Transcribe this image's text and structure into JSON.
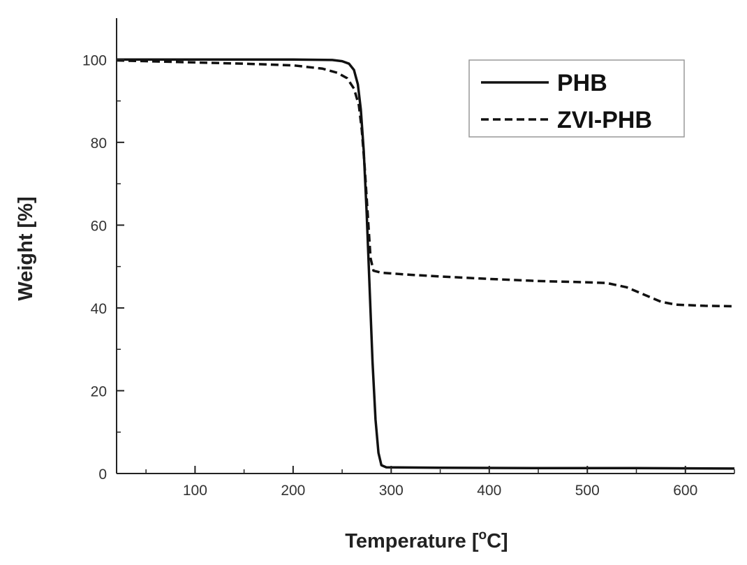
{
  "colors": {
    "line": "#111111",
    "axis": "#222222",
    "legend_border": "#999999",
    "background": "#ffffff"
  },
  "chart_data": {
    "type": "line",
    "title": "",
    "xlabel_main": "Temperature [",
    "xlabel_sup": "o",
    "xlabel_tail": "C]",
    "ylabel": "Weight [%]",
    "xlim": [
      20,
      650
    ],
    "ylim": [
      0,
      110
    ],
    "x_ticks": [
      100,
      200,
      300,
      400,
      500,
      600
    ],
    "x_minor_ticks": [
      50,
      150,
      250,
      350,
      450,
      550,
      650
    ],
    "y_ticks": [
      0,
      20,
      40,
      60,
      80,
      100
    ],
    "grid": false,
    "legend_position": "top-right",
    "series": [
      {
        "name": "PHB",
        "style": "solid",
        "points": [
          [
            20,
            100
          ],
          [
            100,
            100
          ],
          [
            200,
            100
          ],
          [
            240,
            99.9
          ],
          [
            250,
            99.6
          ],
          [
            257,
            99
          ],
          [
            262,
            97.5
          ],
          [
            266,
            94
          ],
          [
            269,
            88
          ],
          [
            272,
            78
          ],
          [
            275,
            63
          ],
          [
            278,
            45
          ],
          [
            281,
            27
          ],
          [
            284,
            13
          ],
          [
            287,
            5
          ],
          [
            290,
            2
          ],
          [
            295,
            1.5
          ],
          [
            350,
            1.4
          ],
          [
            450,
            1.3
          ],
          [
            550,
            1.3
          ],
          [
            650,
            1.2
          ]
        ]
      },
      {
        "name": "ZVI-PHB",
        "style": "dashed",
        "points": [
          [
            20,
            99.8
          ],
          [
            100,
            99.3
          ],
          [
            150,
            99
          ],
          [
            200,
            98.6
          ],
          [
            230,
            97.8
          ],
          [
            245,
            96.8
          ],
          [
            255,
            95.5
          ],
          [
            262,
            93
          ],
          [
            267,
            89
          ],
          [
            270,
            83
          ],
          [
            273,
            74
          ],
          [
            276,
            63
          ],
          [
            279,
            52
          ],
          [
            282,
            49
          ],
          [
            290,
            48.5
          ],
          [
            320,
            48
          ],
          [
            350,
            47.6
          ],
          [
            400,
            47
          ],
          [
            450,
            46.5
          ],
          [
            500,
            46.2
          ],
          [
            520,
            46
          ],
          [
            540,
            45
          ],
          [
            560,
            43
          ],
          [
            575,
            41.5
          ],
          [
            590,
            40.8
          ],
          [
            620,
            40.5
          ],
          [
            650,
            40.4
          ]
        ]
      }
    ]
  }
}
